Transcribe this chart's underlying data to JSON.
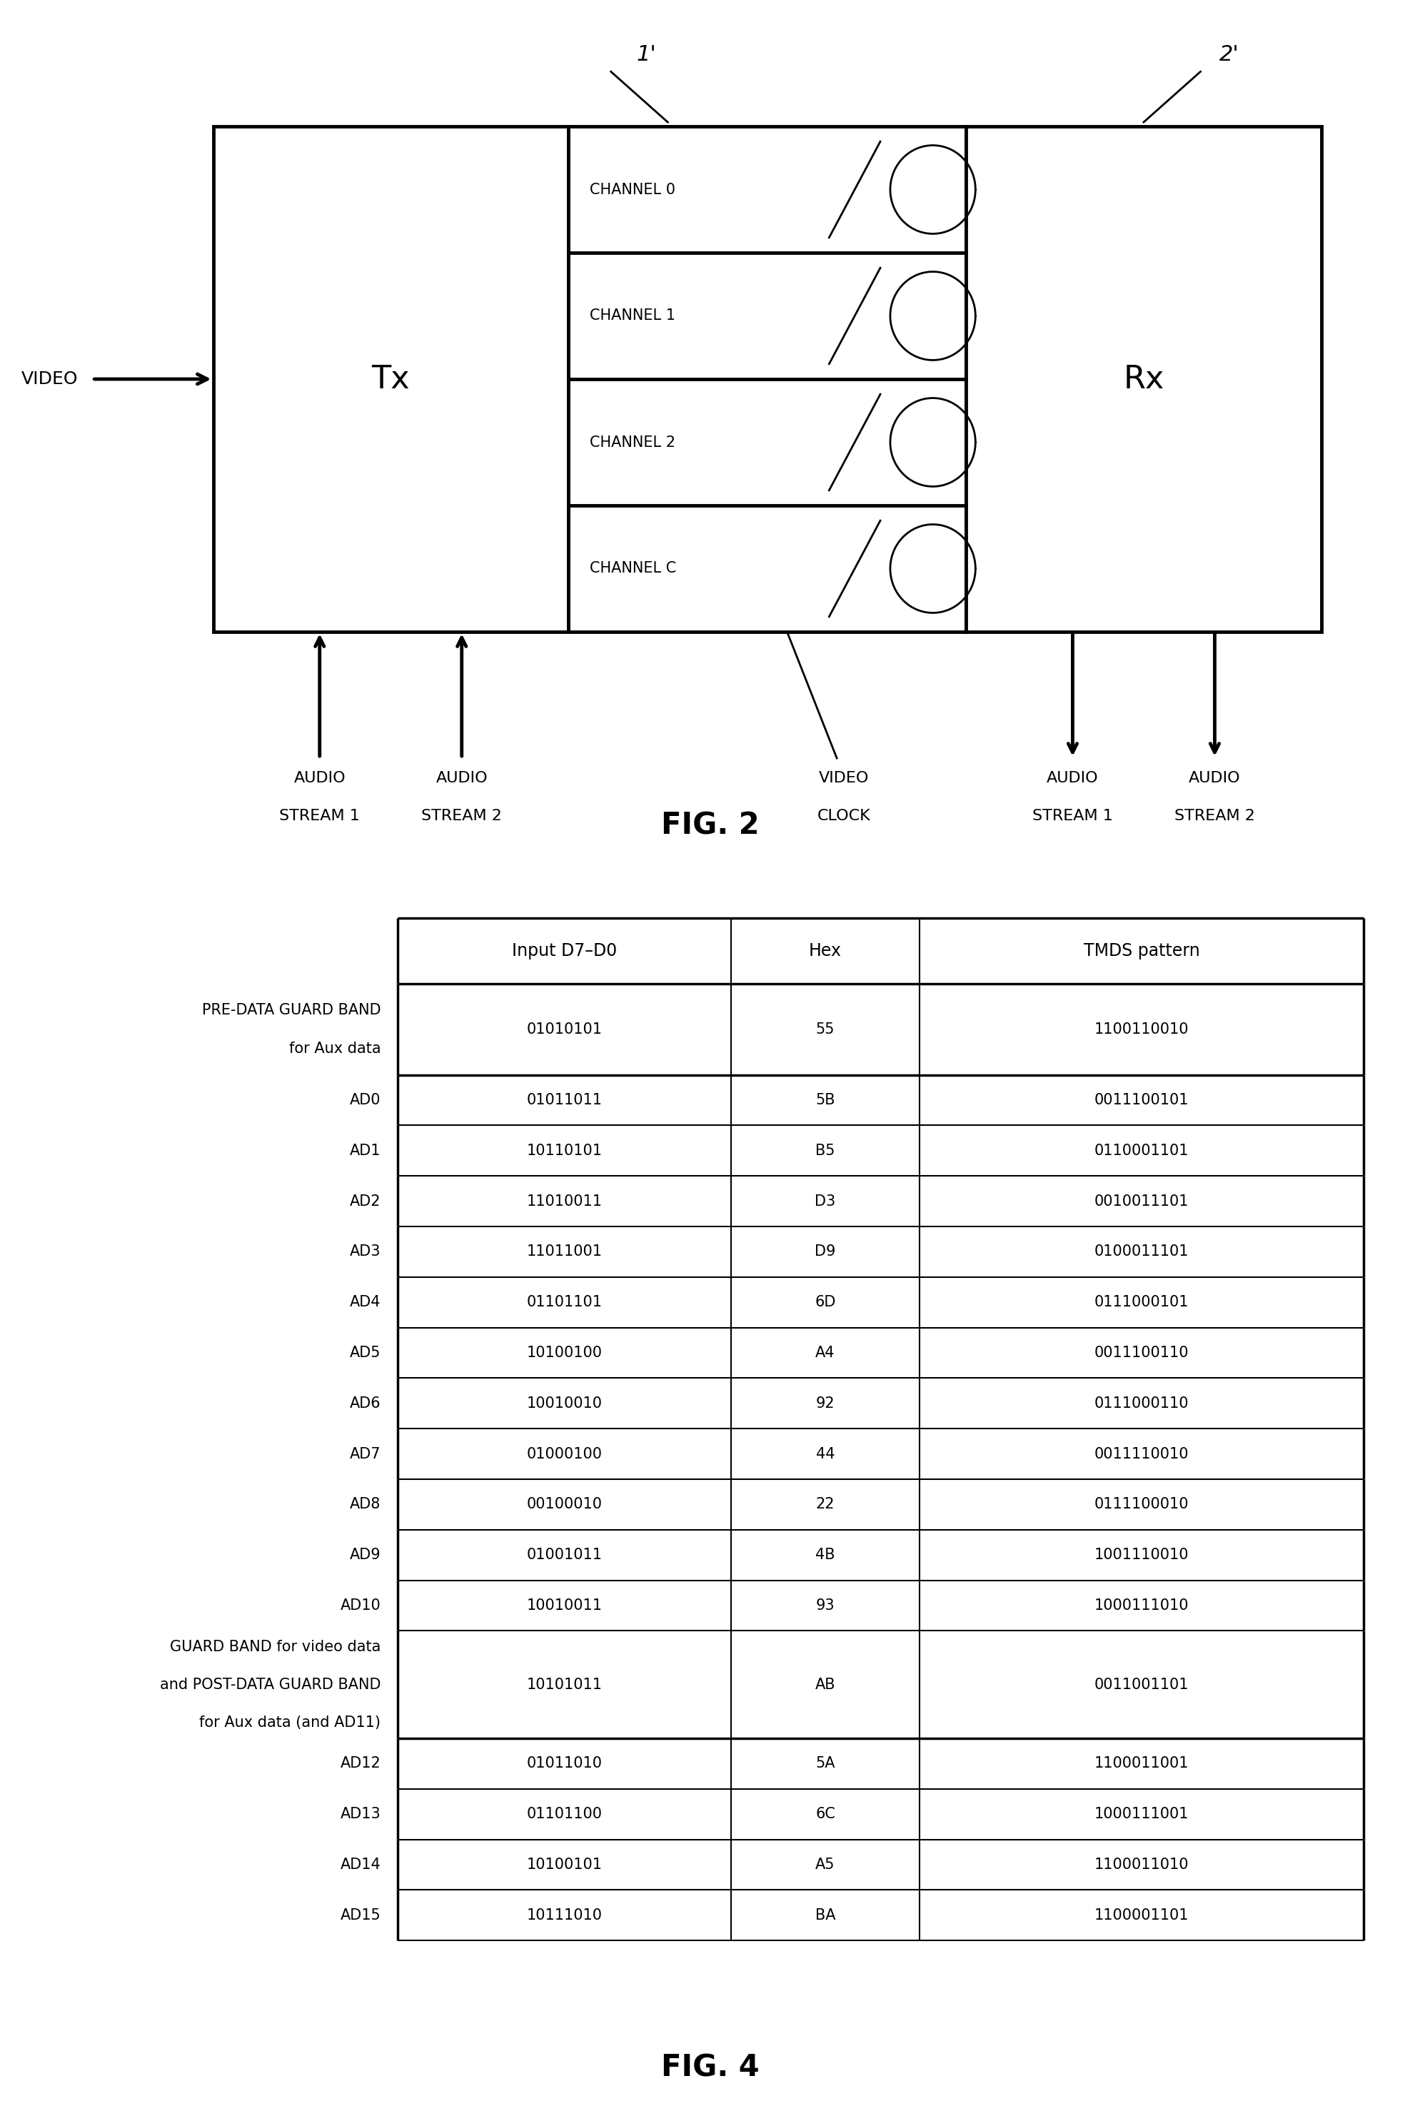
{
  "fig2": {
    "channels": [
      "CHANNEL 0",
      "CHANNEL 1",
      "CHANNEL 2",
      "CHANNEL C"
    ],
    "fig_label": "FIG. 2"
  },
  "fig4": {
    "title": "FIG. 4",
    "col_headers": [
      "Input D7–D0",
      "Hex",
      "TMDS pattern"
    ],
    "rows": [
      {
        "label": "PRE-DATA GUARD BAND\nfor Aux data",
        "input": "01010101",
        "hex": "55",
        "tmds": "1100110010",
        "thick_bottom": true,
        "tall": true
      },
      {
        "label": "AD0",
        "input": "01011011",
        "hex": "5B",
        "tmds": "0011100101",
        "thick_bottom": false,
        "tall": false
      },
      {
        "label": "AD1",
        "input": "10110101",
        "hex": "B5",
        "tmds": "0110001101",
        "thick_bottom": false,
        "tall": false
      },
      {
        "label": "AD2",
        "input": "11010011",
        "hex": "D3",
        "tmds": "0010011101",
        "thick_bottom": false,
        "tall": false
      },
      {
        "label": "AD3",
        "input": "11011001",
        "hex": "D9",
        "tmds": "0100011101",
        "thick_bottom": false,
        "tall": false
      },
      {
        "label": "AD4",
        "input": "01101101",
        "hex": "6D",
        "tmds": "0111000101",
        "thick_bottom": false,
        "tall": false
      },
      {
        "label": "AD5",
        "input": "10100100",
        "hex": "A4",
        "tmds": "0011100110",
        "thick_bottom": false,
        "tall": false
      },
      {
        "label": "AD6",
        "input": "10010010",
        "hex": "92",
        "tmds": "0111000110",
        "thick_bottom": false,
        "tall": false
      },
      {
        "label": "AD7",
        "input": "01000100",
        "hex": "44",
        "tmds": "0011110010",
        "thick_bottom": false,
        "tall": false
      },
      {
        "label": "AD8",
        "input": "00100010",
        "hex": "22",
        "tmds": "0111100010",
        "thick_bottom": false,
        "tall": false
      },
      {
        "label": "AD9",
        "input": "01001011",
        "hex": "4B",
        "tmds": "1001110010",
        "thick_bottom": false,
        "tall": false
      },
      {
        "label": "AD10",
        "input": "10010011",
        "hex": "93",
        "tmds": "1000111010",
        "thick_bottom": false,
        "tall": false
      },
      {
        "label": "GUARD BAND for video data\nand POST-DATA GUARD BAND\nfor Aux data (and AD11)",
        "input": "10101011",
        "hex": "AB",
        "tmds": "0011001101",
        "thick_bottom": true,
        "tall": true
      },
      {
        "label": "AD12",
        "input": "01011010",
        "hex": "5A",
        "tmds": "1100011001",
        "thick_bottom": false,
        "tall": false
      },
      {
        "label": "AD13",
        "input": "01101100",
        "hex": "6C",
        "tmds": "1000111001",
        "thick_bottom": false,
        "tall": false
      },
      {
        "label": "AD14",
        "input": "10100101",
        "hex": "A5",
        "tmds": "1100011010",
        "thick_bottom": false,
        "tall": false
      },
      {
        "label": "AD15",
        "input": "10111010",
        "hex": "BA",
        "tmds": "1100001101",
        "thick_bottom": false,
        "tall": false
      }
    ]
  }
}
